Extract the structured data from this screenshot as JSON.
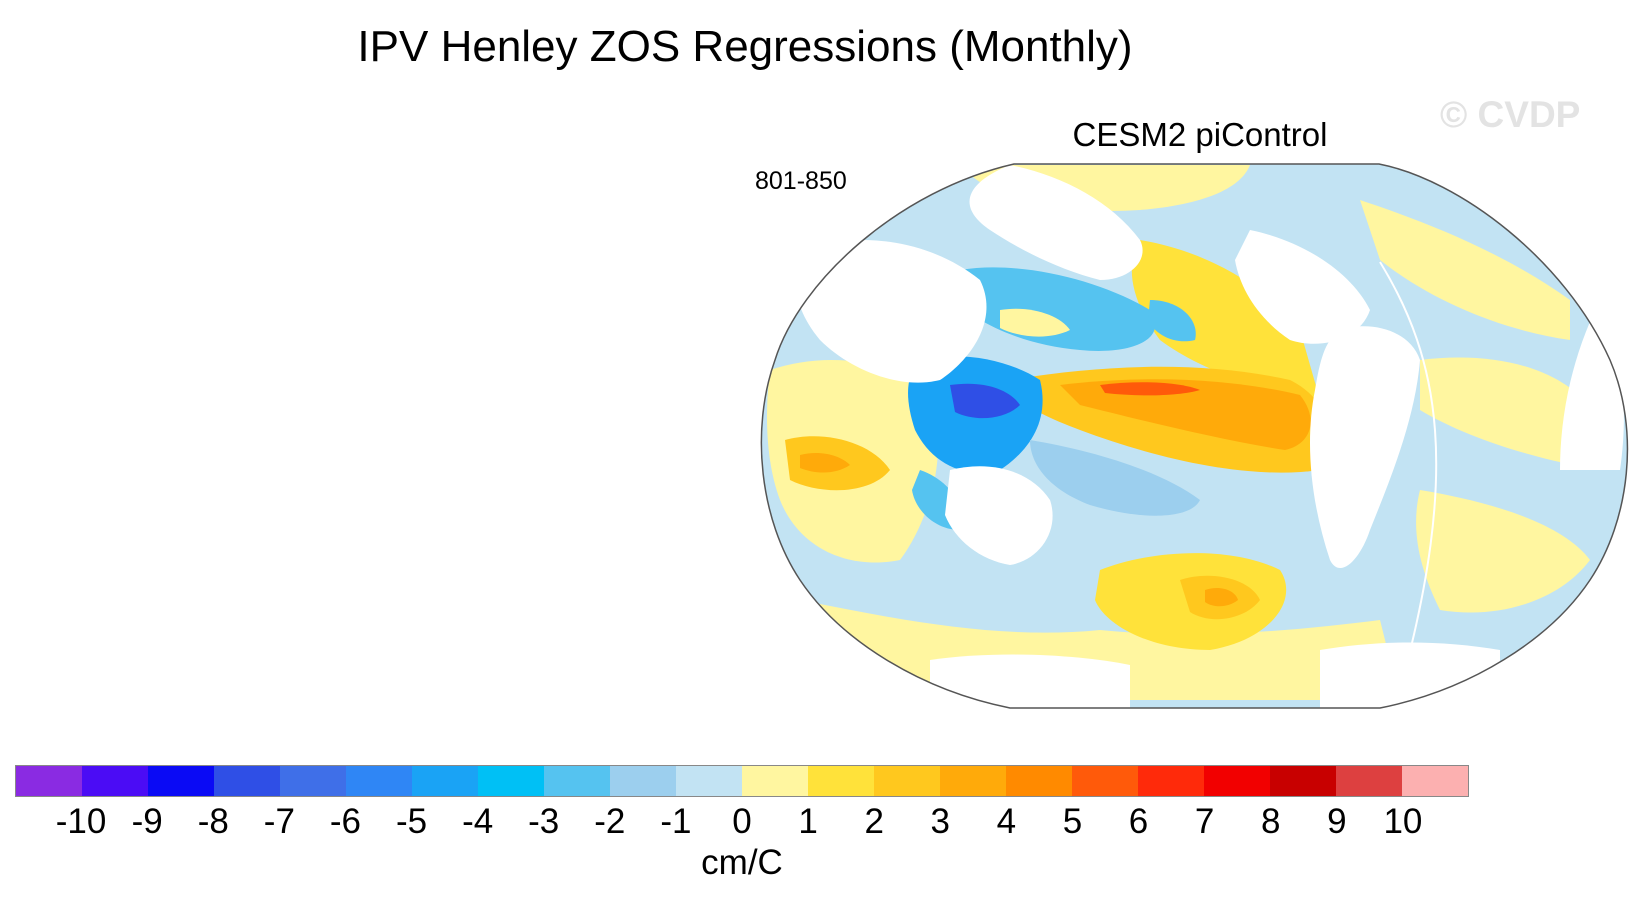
{
  "title": "IPV Henley ZOS Regressions (Monthly)",
  "watermark": "© CVDP",
  "panel": {
    "title": "CESM2 piControl",
    "left_label": "801-850"
  },
  "colorbar": {
    "colors": [
      "#8a2be2",
      "#4b0cf5",
      "#0a0af5",
      "#2f4fe6",
      "#3f6fe8",
      "#2f86f5",
      "#1aa3f5",
      "#00c0f5",
      "#55c3f0",
      "#9ccfee",
      "#c2e3f3",
      "#fff6a0",
      "#ffe23a",
      "#ffc81e",
      "#ffaa0a",
      "#ff8a00",
      "#ff5a0a",
      "#ff2a0a",
      "#f20000",
      "#c80000",
      "#dd4040",
      "#fcb0b0"
    ],
    "tick_labels": [
      "-10",
      "-9",
      "-8",
      "-7",
      "-6",
      "-5",
      "-4",
      "-3",
      "-2",
      "-1",
      "0",
      "1",
      "2",
      "3",
      "4",
      "5",
      "6",
      "7",
      "8",
      "9",
      "10"
    ],
    "units": "cm/C"
  }
}
